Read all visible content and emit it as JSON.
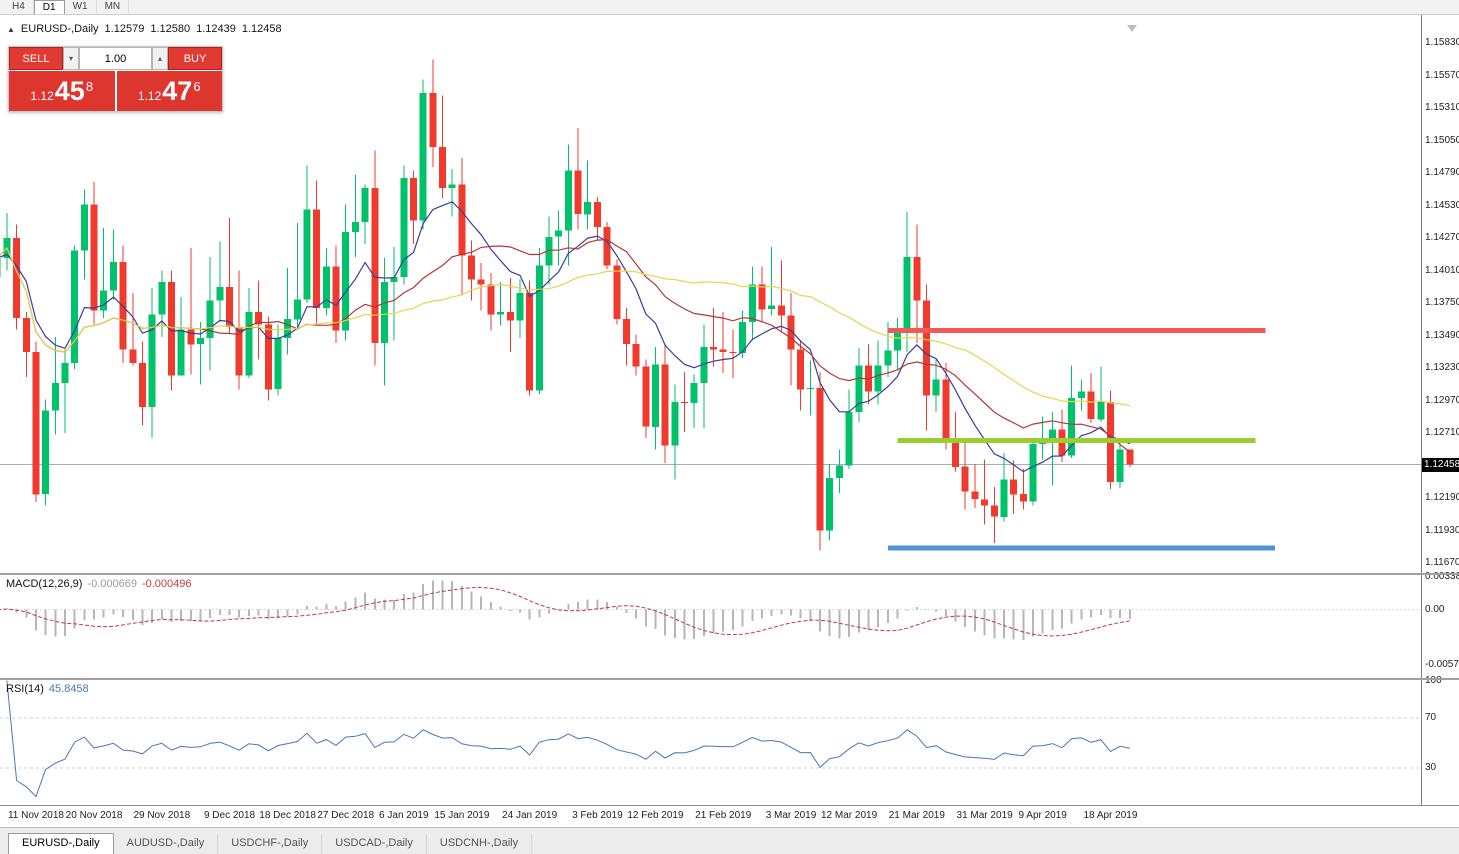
{
  "icons": {
    "collapse": "▲",
    "dropdown": "▾",
    "spinner": "▴"
  },
  "toolbar": {
    "timeframes": [
      {
        "label": "H4",
        "active": false
      },
      {
        "label": "D1",
        "active": true
      },
      {
        "label": "W1",
        "active": false
      },
      {
        "label": "MN",
        "active": false
      }
    ]
  },
  "chart_header": {
    "symbol": "EURUSD-,Daily",
    "open": "1.12579",
    "high": "1.12580",
    "low": "1.12439",
    "close": "1.12458"
  },
  "trade_panel": {
    "sell_label": "SELL",
    "buy_label": "BUY",
    "volume": "1.00",
    "sell_price": {
      "prefix": "1.12",
      "big": "45",
      "sup": "8"
    },
    "buy_price": {
      "prefix": "1.12",
      "big": "47",
      "sup": "6"
    }
  },
  "indicator_panels": {
    "macd": {
      "title": "MACD(12,26,9)",
      "values": [
        "-0.000669",
        "-0.000496"
      ]
    },
    "rsi": {
      "title": "RSI(14)",
      "value": "45.8458"
    }
  },
  "bottom_tabs": [
    {
      "label": "EURUSD-,Daily",
      "active": true
    },
    {
      "label": "AUDUSD-,Daily",
      "active": false
    },
    {
      "label": "USDCHF-,Daily",
      "active": false
    },
    {
      "label": "USDCAD-,Daily",
      "active": false
    },
    {
      "label": "USDCNH-,Daily",
      "active": false
    }
  ],
  "chart_data": {
    "type": "candlestick",
    "title": "EURUSD-,Daily",
    "symbol": "EURUSD-",
    "timeframe": "Daily",
    "current_price": 1.12458,
    "current_price_label": "1.12458",
    "y_axis": {
      "max": 1.1583,
      "min": 1.1167,
      "tick_labels": [
        "1.15830",
        "1.15570",
        "1.15310",
        "1.15050",
        "1.14790",
        "1.14530",
        "1.14270",
        "1.14010",
        "1.13750",
        "1.13490",
        "1.13230",
        "1.12970",
        "1.12710",
        "1.12190",
        "1.11930",
        "1.11670"
      ]
    },
    "x_tick_labels": [
      {
        "index": 4,
        "text": "11 Nov 2018"
      },
      {
        "index": 10,
        "text": "20 Nov 2018"
      },
      {
        "index": 17,
        "text": "29 Nov 2018"
      },
      {
        "index": 24,
        "text": "9 Dec 2018"
      },
      {
        "index": 30,
        "text": "18 Dec 2018"
      },
      {
        "index": 36,
        "text": "27 Dec 2018"
      },
      {
        "index": 42,
        "text": "6 Jan 2019"
      },
      {
        "index": 48,
        "text": "15 Jan 2019"
      },
      {
        "index": 55,
        "text": "24 Jan 2019"
      },
      {
        "index": 62,
        "text": "3 Feb 2019"
      },
      {
        "index": 68,
        "text": "12 Feb 2019"
      },
      {
        "index": 75,
        "text": "21 Feb 2019"
      },
      {
        "index": 82,
        "text": "3 Mar 2019"
      },
      {
        "index": 88,
        "text": "12 Mar 2019"
      },
      {
        "index": 95,
        "text": "21 Mar 2019"
      },
      {
        "index": 102,
        "text": "31 Mar 2019"
      },
      {
        "index": 108,
        "text": "9 Apr 2019"
      },
      {
        "index": 115,
        "text": "18 Apr 2019"
      }
    ],
    "colors": {
      "up": "#00c26a",
      "down": "#ef3a2d",
      "ma_fast": "#3b3b9c",
      "ma_mid": "#b23737",
      "ma_slow": "#e8d44d",
      "macd_hist": "#b6b6b6",
      "macd_signal": "#c23b3b",
      "rsi": "#4879b0",
      "current_line": "#a9adb3"
    },
    "moving_averages": [
      {
        "type": "ema",
        "period": 10
      },
      {
        "type": "sma",
        "period": 22
      },
      {
        "type": "sma",
        "period": 45
      }
    ],
    "macd": {
      "fast": 12,
      "slow": 26,
      "signal": 9,
      "axis_labels": [
        "0.003386",
        "0.00",
        "-0.00574"
      ]
    },
    "rsi": {
      "period": 14,
      "levels": [
        70,
        30
      ],
      "axis_labels": [
        "100",
        "70",
        "30"
      ]
    },
    "hlines": [
      {
        "name": "resistance-line",
        "price": 1.1353,
        "from": 92,
        "to": 131,
        "color": "#f05a54",
        "thickness": 5
      },
      {
        "name": "mid-level-line",
        "price": 1.1265,
        "from": 93,
        "to": 130,
        "color": "#9acd32",
        "thickness": 5
      },
      {
        "name": "support-line",
        "price": 1.1179,
        "from": 92,
        "to": 132,
        "color": "#4e96d2",
        "thickness": 5
      }
    ],
    "candles": [
      [
        1.1396,
        1.1424,
        1.1388,
        1.1411
      ],
      [
        1.1411,
        1.1447,
        1.1401,
        1.1427
      ],
      [
        1.1427,
        1.1438,
        1.1354,
        1.1363
      ],
      [
        1.1363,
        1.1368,
        1.1316,
        1.1336
      ],
      [
        1.1336,
        1.1344,
        1.1216,
        1.1222
      ],
      [
        1.1222,
        1.1298,
        1.1213,
        1.1289
      ],
      [
        1.1289,
        1.1348,
        1.127,
        1.1311
      ],
      [
        1.1311,
        1.1338,
        1.1271,
        1.1327
      ],
      [
        1.1327,
        1.1421,
        1.1322,
        1.1417
      ],
      [
        1.1417,
        1.1466,
        1.1394,
        1.1454
      ],
      [
        1.1454,
        1.1472,
        1.1358,
        1.1369
      ],
      [
        1.1369,
        1.1435,
        1.1363,
        1.1385
      ],
      [
        1.1385,
        1.1434,
        1.1378,
        1.1408
      ],
      [
        1.1408,
        1.1421,
        1.1327,
        1.1338
      ],
      [
        1.1338,
        1.1383,
        1.1325,
        1.1327
      ],
      [
        1.1327,
        1.1344,
        1.1277,
        1.1292
      ],
      [
        1.1292,
        1.1387,
        1.1267,
        1.1366
      ],
      [
        1.1366,
        1.1401,
        1.1348,
        1.1392
      ],
      [
        1.1392,
        1.1401,
        1.1305,
        1.1317
      ],
      [
        1.1317,
        1.138,
        1.1317,
        1.1354
      ],
      [
        1.1354,
        1.1419,
        1.1318,
        1.1342
      ],
      [
        1.1342,
        1.136,
        1.131,
        1.1347
      ],
      [
        1.1347,
        1.1412,
        1.1321,
        1.1377
      ],
      [
        1.1377,
        1.1424,
        1.136,
        1.1388
      ],
      [
        1.1388,
        1.1443,
        1.1351,
        1.1356
      ],
      [
        1.1356,
        1.1401,
        1.1306,
        1.1317
      ],
      [
        1.1317,
        1.1387,
        1.1315,
        1.1368
      ],
      [
        1.1368,
        1.1393,
        1.133,
        1.1358
      ],
      [
        1.1358,
        1.1364,
        1.1297,
        1.1306
      ],
      [
        1.1306,
        1.1358,
        1.1301,
        1.1347
      ],
      [
        1.1347,
        1.1403,
        1.1334,
        1.1362
      ],
      [
        1.1362,
        1.1439,
        1.1355,
        1.1378
      ],
      [
        1.1378,
        1.1485,
        1.1375,
        1.145
      ],
      [
        1.145,
        1.1473,
        1.1358,
        1.1371
      ],
      [
        1.1371,
        1.1419,
        1.1365,
        1.1404
      ],
      [
        1.1404,
        1.1421,
        1.1343,
        1.1353
      ],
      [
        1.1353,
        1.1454,
        1.1345,
        1.1432
      ],
      [
        1.1432,
        1.1478,
        1.1412,
        1.144
      ],
      [
        1.144,
        1.147,
        1.1422,
        1.1467
      ],
      [
        1.1467,
        1.1497,
        1.1325,
        1.1343
      ],
      [
        1.1343,
        1.1411,
        1.1309,
        1.1392
      ],
      [
        1.1392,
        1.142,
        1.1345,
        1.1396
      ],
      [
        1.1396,
        1.1485,
        1.139,
        1.1475
      ],
      [
        1.1475,
        1.1481,
        1.1422,
        1.1441
      ],
      [
        1.1441,
        1.1554,
        1.1434,
        1.1543
      ],
      [
        1.1543,
        1.157,
        1.1484,
        1.15
      ],
      [
        1.15,
        1.1541,
        1.1459,
        1.1467
      ],
      [
        1.1467,
        1.1482,
        1.1444,
        1.147
      ],
      [
        1.147,
        1.1491,
        1.1381,
        1.1413
      ],
      [
        1.1413,
        1.1425,
        1.1377,
        1.1394
      ],
      [
        1.1394,
        1.1407,
        1.1369,
        1.139
      ],
      [
        1.139,
        1.1399,
        1.1353,
        1.1366
      ],
      [
        1.1366,
        1.1392,
        1.1357,
        1.1368
      ],
      [
        1.1368,
        1.1395,
        1.1336,
        1.1361
      ],
      [
        1.1361,
        1.1394,
        1.1347,
        1.1383
      ],
      [
        1.1383,
        1.1393,
        1.1301,
        1.1305
      ],
      [
        1.1305,
        1.1419,
        1.1302,
        1.1405
      ],
      [
        1.1405,
        1.1444,
        1.139,
        1.1428
      ],
      [
        1.1428,
        1.1449,
        1.1405,
        1.1433
      ],
      [
        1.1433,
        1.1502,
        1.1405,
        1.1481
      ],
      [
        1.1481,
        1.1515,
        1.1434,
        1.1446
      ],
      [
        1.1446,
        1.1489,
        1.1434,
        1.1456
      ],
      [
        1.1456,
        1.146,
        1.1425,
        1.1436
      ],
      [
        1.1436,
        1.144,
        1.1402,
        1.1405
      ],
      [
        1.1405,
        1.141,
        1.1358,
        1.1362
      ],
      [
        1.1362,
        1.1371,
        1.1325,
        1.1342
      ],
      [
        1.1342,
        1.135,
        1.1317,
        1.1324
      ],
      [
        1.1324,
        1.133,
        1.1267,
        1.1276
      ],
      [
        1.1276,
        1.134,
        1.1258,
        1.1326
      ],
      [
        1.1326,
        1.1342,
        1.1247,
        1.1261
      ],
      [
        1.1261,
        1.131,
        1.1234,
        1.1296
      ],
      [
        1.1296,
        1.132,
        1.1272,
        1.1295
      ],
      [
        1.1295,
        1.1318,
        1.1275,
        1.1311
      ],
      [
        1.1311,
        1.1358,
        1.1275,
        1.134
      ],
      [
        1.134,
        1.1371,
        1.1324,
        1.1338
      ],
      [
        1.1338,
        1.1368,
        1.1319,
        1.1336
      ],
      [
        1.1336,
        1.1354,
        1.1315,
        1.1335
      ],
      [
        1.1335,
        1.1369,
        1.1331,
        1.136
      ],
      [
        1.136,
        1.1404,
        1.1345,
        1.139
      ],
      [
        1.139,
        1.1404,
        1.136,
        1.137
      ],
      [
        1.137,
        1.142,
        1.1365,
        1.1373
      ],
      [
        1.1373,
        1.1409,
        1.1352,
        1.1365
      ],
      [
        1.1365,
        1.1383,
        1.1309,
        1.1338
      ],
      [
        1.1338,
        1.1344,
        1.1289,
        1.1306
      ],
      [
        1.1306,
        1.1329,
        1.1285,
        1.1307
      ],
      [
        1.1307,
        1.132,
        1.1177,
        1.1193
      ],
      [
        1.1193,
        1.1246,
        1.1185,
        1.1235
      ],
      [
        1.1235,
        1.1258,
        1.1223,
        1.1245
      ],
      [
        1.1245,
        1.1306,
        1.1242,
        1.1288
      ],
      [
        1.1288,
        1.1339,
        1.128,
        1.1325
      ],
      [
        1.1325,
        1.1342,
        1.1294,
        1.1304
      ],
      [
        1.1304,
        1.1345,
        1.1294,
        1.1325
      ],
      [
        1.1325,
        1.136,
        1.1316,
        1.1337
      ],
      [
        1.1337,
        1.1363,
        1.1321,
        1.1353
      ],
      [
        1.1353,
        1.1448,
        1.1336,
        1.1412
      ],
      [
        1.1412,
        1.1438,
        1.1343,
        1.1377
      ],
      [
        1.1377,
        1.139,
        1.1273,
        1.1301
      ],
      [
        1.1301,
        1.133,
        1.1288,
        1.1314
      ],
      [
        1.1314,
        1.1327,
        1.1258,
        1.1266
      ],
      [
        1.1266,
        1.1288,
        1.124,
        1.1244
      ],
      [
        1.1244,
        1.1263,
        1.121,
        1.1224
      ],
      [
        1.1224,
        1.1246,
        1.1211,
        1.1218
      ],
      [
        1.1218,
        1.125,
        1.1198,
        1.1213
      ],
      [
        1.1213,
        1.1228,
        1.1183,
        1.1204
      ],
      [
        1.1204,
        1.1255,
        1.12,
        1.1234
      ],
      [
        1.1234,
        1.1249,
        1.1206,
        1.1222
      ],
      [
        1.1222,
        1.1242,
        1.121,
        1.1216
      ],
      [
        1.1216,
        1.1264,
        1.1213,
        1.1262
      ],
      [
        1.1262,
        1.1284,
        1.125,
        1.1264
      ],
      [
        1.1264,
        1.1288,
        1.1229,
        1.1274
      ],
      [
        1.1274,
        1.129,
        1.1248,
        1.1253
      ],
      [
        1.1253,
        1.1325,
        1.1251,
        1.1299
      ],
      [
        1.1299,
        1.1314,
        1.1289,
        1.1304
      ],
      [
        1.1304,
        1.1319,
        1.1279,
        1.1282
      ],
      [
        1.1282,
        1.1324,
        1.128,
        1.1296
      ],
      [
        1.1296,
        1.1305,
        1.1226,
        1.1232
      ],
      [
        1.1232,
        1.1264,
        1.1227,
        1.1258
      ],
      [
        1.12579,
        1.1258,
        1.12439,
        1.12458
      ]
    ]
  }
}
